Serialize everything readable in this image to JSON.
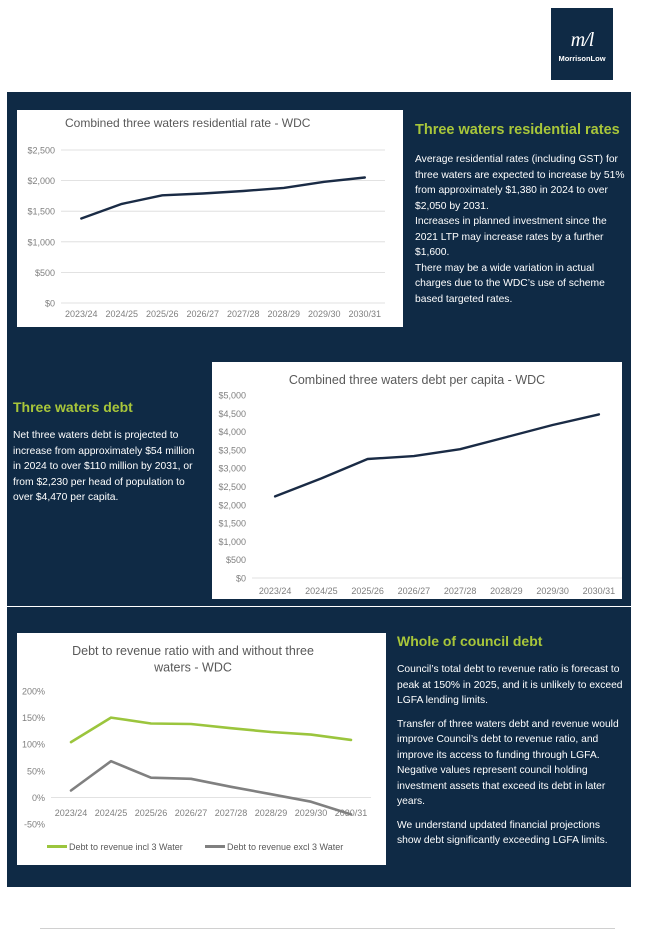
{
  "logo": {
    "mark": "m/l",
    "wordmark": "MorrisonLow"
  },
  "section1": {
    "title": "Three waters residential rates",
    "paragraphs": [
      "Average residential rates (including GST) for three waters are expected to increase by 51% from approximately $1,380 in 2024 to over $2,050 by 2031.",
      "Increases in planned investment since the 2021 LTP may increase rates by a further $1,600.",
      "There may be a wide variation in actual charges due to the WDC’s use of scheme based targeted rates."
    ]
  },
  "section2": {
    "title": "Three waters debt",
    "paragraphs": [
      "Net three waters debt is projected to increase from approximately $54 million in 2024 to over $110 million by 2031, or from $2,230 per head of population to over $4,470 per capita."
    ]
  },
  "section3": {
    "title": "Whole of council debt",
    "paragraphs": [
      "Council’s total debt to revenue ratio is forecast to peak at 150% in 2025, and it is unlikely to exceed LGFA lending limits.",
      "Transfer of three waters debt and revenue would improve Council’s debt to revenue ratio, and improve its access to funding through LGFA. Negative values represent council holding investment assets that exceed its debt in later years.",
      "We understand updated financial projections show debt significantly exceeding LGFA limits."
    ]
  },
  "chart_data": [
    {
      "type": "line",
      "title": "Combined three waters residential rate  - WDC",
      "categories": [
        "2023/24",
        "2024/25",
        "2025/26",
        "2026/27",
        "2027/28",
        "2028/29",
        "2029/30",
        "2030/31"
      ],
      "series": [
        {
          "name": "Residential rate",
          "values": [
            1380,
            1620,
            1760,
            1790,
            1830,
            1880,
            1980,
            2050
          ],
          "color": "#1a2b45"
        }
      ],
      "yticks": [
        "$0",
        "$500",
        "$1,000",
        "$1,500",
        "$2,000",
        "$2,500"
      ],
      "ylim": [
        0,
        2500
      ],
      "grid": true
    },
    {
      "type": "line",
      "title": "Combined three waters debt per capita - WDC",
      "categories": [
        "2023/24",
        "2024/25",
        "2025/26",
        "2026/27",
        "2027/28",
        "2028/29",
        "2029/30",
        "2030/31"
      ],
      "series": [
        {
          "name": "Debt per capita",
          "values": [
            2230,
            2720,
            3250,
            3330,
            3520,
            3850,
            4180,
            4470
          ],
          "color": "#1a2b45"
        }
      ],
      "yticks": [
        "$0",
        "$500",
        "$1,000",
        "$1,500",
        "$2,000",
        "$2,500",
        "$3,000",
        "$3,500",
        "$4,000",
        "$4,500",
        "$5,000"
      ],
      "ylim": [
        0,
        5000
      ],
      "grid": false
    },
    {
      "type": "line",
      "title_lines": [
        "Debt to revenue ratio with and without three",
        "waters - WDC"
      ],
      "categories": [
        "2023/24",
        "2024/25",
        "2025/26",
        "2026/27",
        "2027/28",
        "2028/29",
        "2029/30",
        "2030/31"
      ],
      "series": [
        {
          "name": "Debt to revenue incl 3 Water",
          "values": [
            104,
            150,
            139,
            138,
            130,
            123,
            118,
            108
          ],
          "color": "#9bc53d"
        },
        {
          "name": "Debt to revenue excl 3 Water",
          "values": [
            13,
            68,
            37,
            35,
            20,
            6,
            -8,
            -32
          ],
          "color": "#808080"
        }
      ],
      "yticks": [
        "-50%",
        "0%",
        "50%",
        "100%",
        "150%",
        "200%"
      ],
      "ylim": [
        -50,
        200
      ],
      "grid": false,
      "legend": "bottom"
    }
  ]
}
